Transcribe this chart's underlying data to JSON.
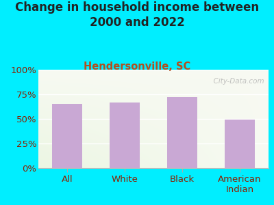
{
  "title": "Change in household income between\n2000 and 2022",
  "subtitle": "Hendersonville, SC",
  "categories": [
    "All",
    "White",
    "Black",
    "American\nIndian"
  ],
  "values": [
    65.0,
    67.0,
    72.0,
    49.0
  ],
  "bar_color": "#c9a8d4",
  "bg_color": "#00eeff",
  "title_color": "#222222",
  "subtitle_color": "#b05020",
  "axis_label_color": "#8b2000",
  "ytick_labels": [
    "0%",
    "25%",
    "50%",
    "75%",
    "100%"
  ],
  "ytick_values": [
    0,
    25,
    50,
    75,
    100
  ],
  "ylim": [
    0,
    100
  ],
  "watermark": "  City-Data.com",
  "title_fontsize": 12,
  "subtitle_fontsize": 10.5,
  "tick_fontsize": 9.5
}
